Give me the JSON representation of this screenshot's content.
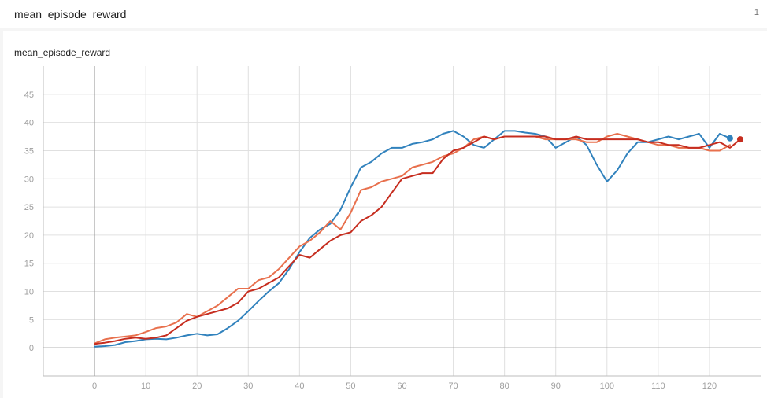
{
  "header": {
    "title": "mean_episode_reward",
    "count": "1"
  },
  "chart_data": {
    "type": "line",
    "title": "mean_episode_reward",
    "xlabel": "",
    "ylabel": "",
    "xlim": [
      -10,
      130
    ],
    "ylim": [
      -5,
      50
    ],
    "xticks": [
      0,
      10,
      20,
      30,
      40,
      50,
      60,
      70,
      80,
      90,
      100,
      110,
      120
    ],
    "yticks": [
      0,
      5,
      10,
      15,
      20,
      25,
      30,
      35,
      40,
      45
    ],
    "grid": true,
    "series": [
      {
        "color": "#3182bd",
        "end_marker": true,
        "x": [
          0,
          2,
          4,
          6,
          8,
          10,
          12,
          14,
          16,
          18,
          20,
          22,
          24,
          26,
          28,
          30,
          32,
          34,
          36,
          38,
          40,
          42,
          44,
          46,
          48,
          50,
          52,
          54,
          56,
          58,
          60,
          62,
          64,
          66,
          68,
          70,
          72,
          74,
          76,
          78,
          80,
          82,
          84,
          86,
          88,
          90,
          92,
          94,
          96,
          98,
          100,
          102,
          104,
          106,
          108,
          110,
          112,
          114,
          116,
          118,
          120,
          122,
          124
        ],
        "y": [
          0.2,
          0.3,
          0.5,
          1.0,
          1.2,
          1.5,
          1.6,
          1.5,
          1.8,
          2.2,
          2.5,
          2.2,
          2.4,
          3.5,
          4.8,
          6.5,
          8.3,
          10.0,
          11.5,
          14.0,
          17.0,
          19.5,
          21.0,
          22.0,
          24.5,
          28.5,
          32.0,
          33.0,
          34.5,
          35.5,
          35.5,
          36.2,
          36.5,
          37.0,
          38.0,
          38.5,
          37.5,
          36.0,
          35.5,
          37.0,
          38.5,
          38.5,
          38.2,
          38.0,
          37.5,
          35.5,
          36.5,
          37.5,
          36.0,
          32.5,
          29.5,
          31.5,
          34.5,
          36.5,
          36.5,
          37.0,
          37.5,
          37.0,
          37.5,
          38.0,
          35.5,
          38.0,
          37.2
        ]
      },
      {
        "color": "#e8704d",
        "end_marker": false,
        "x": [
          0,
          2,
          4,
          6,
          8,
          10,
          12,
          14,
          16,
          18,
          20,
          22,
          24,
          26,
          28,
          30,
          32,
          34,
          36,
          38,
          40,
          42,
          44,
          46,
          48,
          50,
          52,
          54,
          56,
          58,
          60,
          62,
          64,
          66,
          68,
          70,
          72,
          74,
          76,
          78,
          80,
          82,
          84,
          86,
          88,
          90,
          92,
          94,
          96,
          98,
          100,
          102,
          104,
          106,
          108,
          110,
          112,
          114,
          116,
          118,
          120,
          122,
          124
        ],
        "y": [
          0.8,
          1.5,
          1.8,
          2.0,
          2.2,
          2.8,
          3.5,
          3.8,
          4.5,
          6.0,
          5.5,
          6.5,
          7.5,
          9.0,
          10.5,
          10.5,
          12.0,
          12.5,
          14.0,
          16.0,
          18.0,
          19.0,
          20.5,
          22.5,
          21.0,
          24.0,
          28.0,
          28.5,
          29.5,
          30.0,
          30.5,
          32.0,
          32.5,
          33.0,
          34.0,
          34.5,
          35.5,
          37.0,
          37.5,
          37.0,
          37.5,
          37.5,
          37.5,
          37.5,
          37.0,
          37.0,
          37.0,
          37.0,
          36.5,
          36.5,
          37.5,
          38.0,
          37.5,
          37.0,
          36.5,
          36.0,
          36.0,
          35.5,
          35.5,
          35.5,
          35.0,
          35.0,
          36.0
        ]
      },
      {
        "color": "#c62d1f",
        "end_marker": true,
        "x": [
          0,
          2,
          4,
          6,
          8,
          10,
          12,
          14,
          16,
          18,
          20,
          22,
          24,
          26,
          28,
          30,
          32,
          34,
          36,
          38,
          40,
          42,
          44,
          46,
          48,
          50,
          52,
          54,
          56,
          58,
          60,
          62,
          64,
          66,
          68,
          70,
          72,
          74,
          76,
          78,
          80,
          82,
          84,
          86,
          88,
          90,
          92,
          94,
          96,
          98,
          100,
          102,
          104,
          106,
          108,
          110,
          112,
          114,
          116,
          118,
          120,
          122,
          124,
          126
        ],
        "y": [
          0.7,
          0.9,
          1.2,
          1.6,
          1.8,
          1.6,
          1.8,
          2.2,
          3.5,
          4.8,
          5.5,
          6.0,
          6.5,
          7.0,
          8.0,
          10.0,
          10.5,
          11.5,
          12.5,
          14.5,
          16.5,
          16.0,
          17.5,
          19.0,
          20.0,
          20.5,
          22.5,
          23.5,
          25.0,
          27.5,
          30.0,
          30.5,
          31.0,
          31.0,
          33.5,
          35.0,
          35.5,
          36.5,
          37.5,
          37.0,
          37.5,
          37.5,
          37.5,
          37.5,
          37.5,
          37.0,
          37.0,
          37.5,
          37.0,
          37.0,
          37.0,
          37.0,
          37.0,
          37.0,
          36.5,
          36.5,
          36.0,
          36.0,
          35.5,
          35.5,
          36.0,
          36.5,
          35.5,
          37.0
        ]
      }
    ]
  }
}
